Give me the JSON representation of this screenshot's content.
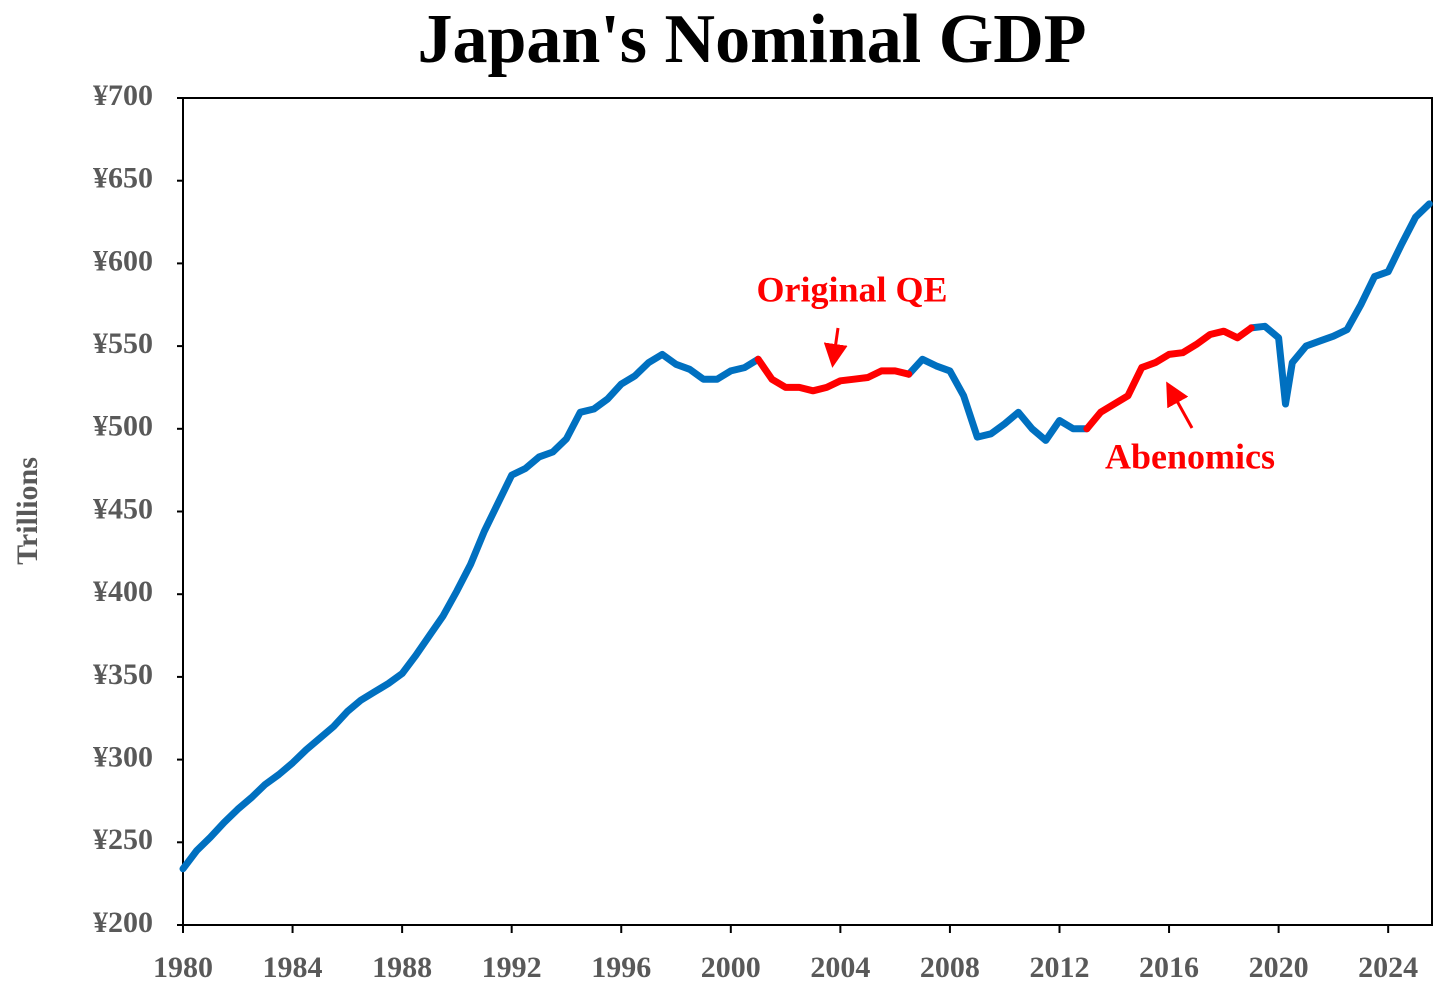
{
  "chart_data": {
    "type": "line",
    "title": "Japan's Nominal GDP",
    "y_label": "Trillions",
    "annotations": [
      "Original QE",
      "Abenomics"
    ],
    "annotation_color": "#ff0000",
    "xlim": [
      1980,
      2025.6
    ],
    "xticks": [
      1980,
      1984,
      1988,
      1992,
      1996,
      2000,
      2004,
      2008,
      2012,
      2016,
      2020,
      2024
    ],
    "ylim": [
      200,
      700
    ],
    "yticks": [
      {
        "value": 200,
        "label": "¥200"
      },
      {
        "value": 250,
        "label": "¥250"
      },
      {
        "value": 300,
        "label": "¥300"
      },
      {
        "value": 350,
        "label": "¥350"
      },
      {
        "value": 400,
        "label": "¥400"
      },
      {
        "value": 450,
        "label": "¥450"
      },
      {
        "value": 500,
        "label": "¥500"
      },
      {
        "value": 550,
        "label": "¥550"
      },
      {
        "value": 600,
        "label": "¥600"
      },
      {
        "value": 650,
        "label": "¥650"
      },
      {
        "value": 700,
        "label": "¥700"
      }
    ],
    "grid": false,
    "x": [
      1980,
      1980.5,
      1981,
      1981.5,
      1982,
      1982.5,
      1983,
      1983.5,
      1984,
      1984.5,
      1985,
      1985.5,
      1986,
      1986.5,
      1987,
      1987.5,
      1988,
      1988.5,
      1989,
      1989.5,
      1990,
      1990.5,
      1991,
      1991.5,
      1992,
      1992.5,
      1993,
      1993.5,
      1994,
      1994.5,
      1995,
      1995.5,
      1996,
      1996.5,
      1997,
      1997.5,
      1998,
      1998.5,
      1999,
      1999.5,
      2000,
      2000.5,
      2001,
      2001.5,
      2002,
      2002.5,
      2003,
      2003.5,
      2004,
      2004.5,
      2005,
      2005.5,
      2006,
      2006.5,
      2007,
      2007.5,
      2008,
      2008.5,
      2009,
      2009.5,
      2010,
      2010.5,
      2011,
      2011.5,
      2012,
      2012.5,
      2013,
      2013.5,
      2014,
      2014.5,
      2015,
      2015.5,
      2016,
      2016.5,
      2017,
      2017.5,
      2018,
      2018.5,
      2019,
      2019.5,
      2020,
      2020.25,
      2020.5,
      2021,
      2021.5,
      2022,
      2022.5,
      2023,
      2023.5,
      2024,
      2024.5,
      2025,
      2025.5
    ],
    "series": [
      {
        "color": "#0070c0",
        "values": [
          234,
          245,
          253,
          262,
          270,
          277,
          285,
          291,
          298,
          306,
          313,
          320,
          329,
          336,
          341,
          346,
          352,
          363,
          375,
          387,
          402,
          418,
          438,
          455,
          472,
          476,
          483,
          486,
          494,
          510,
          512,
          518,
          527,
          532,
          540,
          545,
          539,
          536,
          530,
          530,
          535,
          537,
          542,
          null,
          null,
          null,
          null,
          null,
          null,
          null,
          null,
          null,
          null,
          533,
          542,
          538,
          535,
          520,
          495,
          497,
          503,
          510,
          500,
          493,
          505,
          500,
          500,
          null,
          null,
          null,
          null,
          null,
          null,
          null,
          null,
          null,
          null,
          null,
          561,
          562,
          555,
          515,
          540,
          550,
          553,
          556,
          560,
          575,
          592,
          595,
          612,
          628,
          636
        ]
      },
      {
        "color": "#ff0000",
        "values": [
          null,
          null,
          null,
          null,
          null,
          null,
          null,
          null,
          null,
          null,
          null,
          null,
          null,
          null,
          null,
          null,
          null,
          null,
          null,
          null,
          null,
          null,
          null,
          null,
          null,
          null,
          null,
          null,
          null,
          null,
          null,
          null,
          null,
          null,
          null,
          null,
          null,
          null,
          null,
          null,
          null,
          null,
          542,
          530,
          525,
          525,
          523,
          525,
          529,
          530,
          531,
          535,
          535,
          533,
          null,
          null,
          null,
          null,
          null,
          null,
          null,
          null,
          null,
          null,
          null,
          null,
          500,
          510,
          515,
          520,
          537,
          540,
          545,
          546,
          551,
          557,
          559,
          555,
          561,
          null,
          null,
          null,
          null,
          null,
          null,
          null,
          null,
          null,
          null,
          null,
          null,
          null,
          null
        ]
      }
    ]
  }
}
